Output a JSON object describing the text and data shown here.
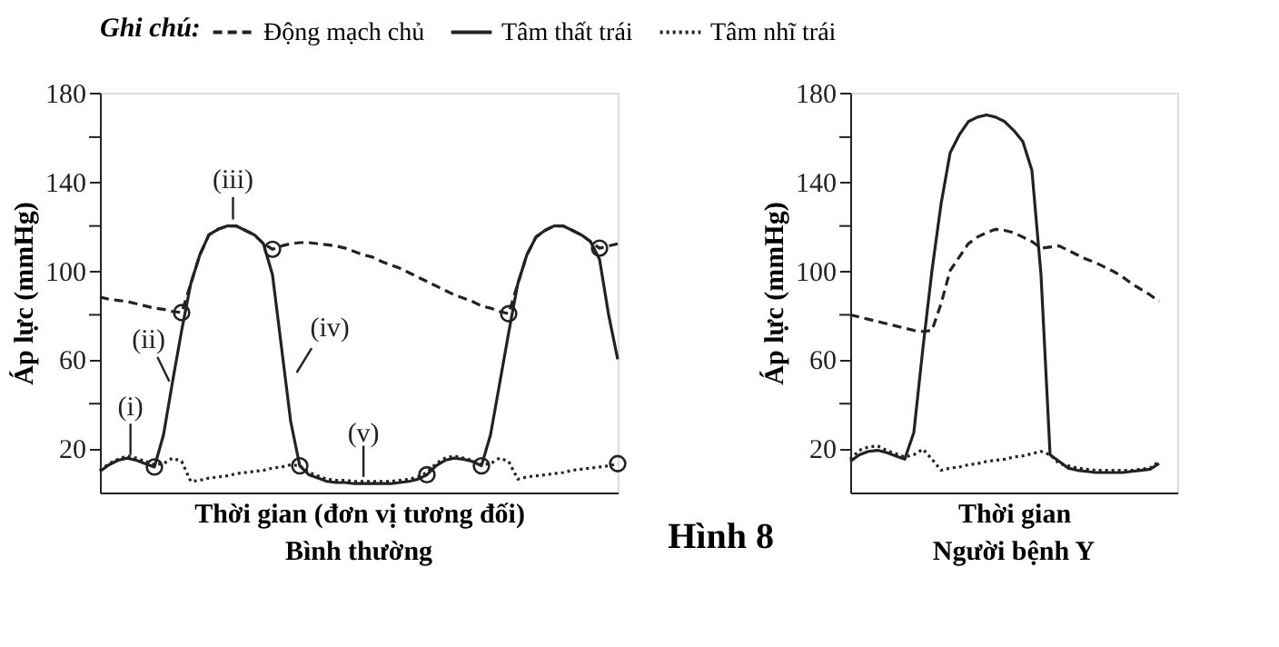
{
  "chart_data": [
    {
      "type": "line",
      "subtitle": "Bình thường",
      "xlabel": "Thời gian (đơn vị tương đối)",
      "ylabel": "Áp lực (mmHg)",
      "legend_title": "Ghi chú:",
      "legend": "top",
      "tick_labels": "y",
      "grid": false,
      "ylim": [
        0,
        180
      ],
      "yticks": [
        20,
        {
          "value": 40,
          "label": null
        },
        60,
        {
          "value": 80,
          "label": null
        },
        100,
        {
          "value": 120,
          "label": null
        },
        140,
        {
          "value": 160,
          "label": null
        },
        180
      ],
      "categories": [
        null,
        null,
        null,
        null,
        null,
        null,
        null,
        null,
        null,
        null,
        null,
        null,
        null,
        null,
        null,
        null,
        null,
        null,
        null,
        null,
        null,
        null,
        null,
        null,
        null,
        null,
        null,
        null,
        null,
        null,
        null,
        null,
        null,
        null,
        null,
        null,
        null,
        null,
        null,
        null,
        null,
        null,
        null,
        null,
        null,
        null,
        null,
        null,
        null,
        null,
        null,
        null,
        null,
        null,
        null,
        null,
        null,
        null
      ],
      "series": [
        {
          "name": "Động mạch chủ",
          "color": "#222222",
          "line_style": "dashed",
          "values": [
            88,
            87,
            86.5,
            86,
            85,
            84,
            83,
            82.5,
            81.5,
            81,
            94,
            107,
            116,
            118.5,
            120,
            120,
            118,
            116,
            112,
            109.5,
            111,
            112,
            112.5,
            112.5,
            112,
            111.5,
            111,
            110,
            108.5,
            107,
            106,
            104,
            102.5,
            101,
            99,
            97,
            95,
            93,
            91,
            89,
            87.5,
            86,
            84,
            83,
            81.5,
            80.5,
            94,
            107,
            115,
            118,
            120,
            120,
            118,
            116,
            113,
            110,
            111,
            112
          ]
        },
        {
          "name": "Tâm thất trái",
          "color": "#222222",
          "line_style": "solid",
          "values": [
            9.5,
            12.5,
            14.5,
            15.5,
            14.5,
            13,
            11.5,
            26,
            50,
            73,
            94,
            107,
            116,
            118.5,
            120,
            120,
            118,
            116,
            112,
            98,
            65,
            32,
            12,
            8,
            6.5,
            5,
            4.5,
            4.5,
            4,
            4,
            4,
            4,
            4,
            4.5,
            5,
            6,
            8,
            12,
            14.5,
            15.5,
            15,
            14,
            12,
            26,
            49,
            72,
            94,
            107,
            115,
            118,
            120,
            120,
            118,
            116,
            113,
            105,
            80,
            60
          ]
        },
        {
          "name": "Tâm nhĩ trái",
          "color": "#222222",
          "line_style": "dotted",
          "values": [
            10,
            13,
            15,
            16.5,
            15.5,
            14,
            12.5,
            13,
            15.5,
            14,
            5,
            5.5,
            6.5,
            7,
            7.5,
            8.5,
            9,
            9.5,
            10,
            11,
            11.5,
            12.5,
            12,
            9,
            7.5,
            6,
            5.5,
            5.5,
            5,
            5,
            5,
            5,
            5,
            5.5,
            6,
            7,
            9,
            13,
            15.5,
            16.5,
            15.5,
            14.5,
            12.5,
            13,
            15.5,
            14,
            6,
            7,
            7.5,
            8,
            8.5,
            9,
            10,
            10.5,
            11,
            11.5,
            12,
            13
          ]
        },
        {
          "type": "scatter",
          "color": "#222222",
          "marker": "circle",
          "values": [
            null,
            null,
            null,
            null,
            null,
            null,
            11.5,
            null,
            null,
            81,
            null,
            null,
            null,
            null,
            null,
            null,
            null,
            null,
            null,
            109.5,
            null,
            null,
            12,
            null,
            null,
            null,
            null,
            null,
            null,
            null,
            null,
            null,
            null,
            null,
            null,
            null,
            8,
            null,
            null,
            null,
            null,
            null,
            12,
            null,
            null,
            80.5,
            null,
            null,
            null,
            null,
            null,
            null,
            null,
            null,
            null,
            110,
            null,
            13
          ]
        }
      ],
      "annotations": [
        "(i)",
        "(ii)",
        "(iii)",
        "(iv)",
        "(v)",
        "Hình 8"
      ]
    },
    {
      "type": "line",
      "subtitle": "Người bệnh Y",
      "xlabel": "Thời gian",
      "ylabel": "Áp lực (mmHg)",
      "tick_labels": "y",
      "grid": false,
      "ylim": [
        0,
        180
      ],
      "yticks": [
        20,
        {
          "value": 40,
          "label": null
        },
        60,
        {
          "value": 80,
          "label": null
        },
        100,
        {
          "value": 120,
          "label": null
        },
        140,
        {
          "value": 160,
          "label": null
        },
        180
      ],
      "categories": [
        null,
        null,
        null,
        null,
        null,
        null,
        null,
        null,
        null,
        null,
        null,
        null,
        null,
        null,
        null,
        null,
        null,
        null,
        null,
        null,
        null,
        null,
        null,
        null,
        null,
        null,
        null,
        null,
        null,
        null,
        null,
        null,
        null,
        null,
        null,
        null,
        null
      ],
      "series": [
        {
          "color": "#222222",
          "line_style": "dashed",
          "values": [
            80,
            79,
            78,
            77,
            76,
            75,
            74,
            73,
            72.5,
            73,
            85,
            100,
            106,
            112,
            115,
            117,
            118.5,
            118,
            117,
            115,
            113,
            110,
            110.5,
            111,
            109,
            107,
            105,
            103.5,
            101.5,
            99.5,
            97,
            94,
            91.5,
            89,
            86,
            null,
            null
          ]
        },
        {
          "color": "#222222",
          "line_style": "solid",
          "values": [
            14,
            17,
            18.5,
            19,
            18,
            16.5,
            15,
            27,
            65,
            100,
            130,
            153,
            161,
            167,
            169,
            170,
            169,
            167,
            163,
            158,
            145,
            98,
            17,
            14,
            11,
            10,
            9.5,
            9,
            9,
            9,
            9,
            9.5,
            10,
            10.5,
            13,
            null,
            null
          ]
        },
        {
          "color": "#222222",
          "line_style": "dotted",
          "values": [
            15,
            19,
            20.5,
            21,
            19,
            17.5,
            16,
            17,
            19.5,
            15,
            10,
            11,
            11.5,
            12.5,
            13,
            14,
            14.5,
            15,
            16,
            16.5,
            17.5,
            18.5,
            17,
            13,
            12,
            11,
            10.5,
            10,
            10,
            10,
            10,
            10,
            10.5,
            11,
            14,
            null,
            null
          ]
        }
      ]
    }
  ]
}
